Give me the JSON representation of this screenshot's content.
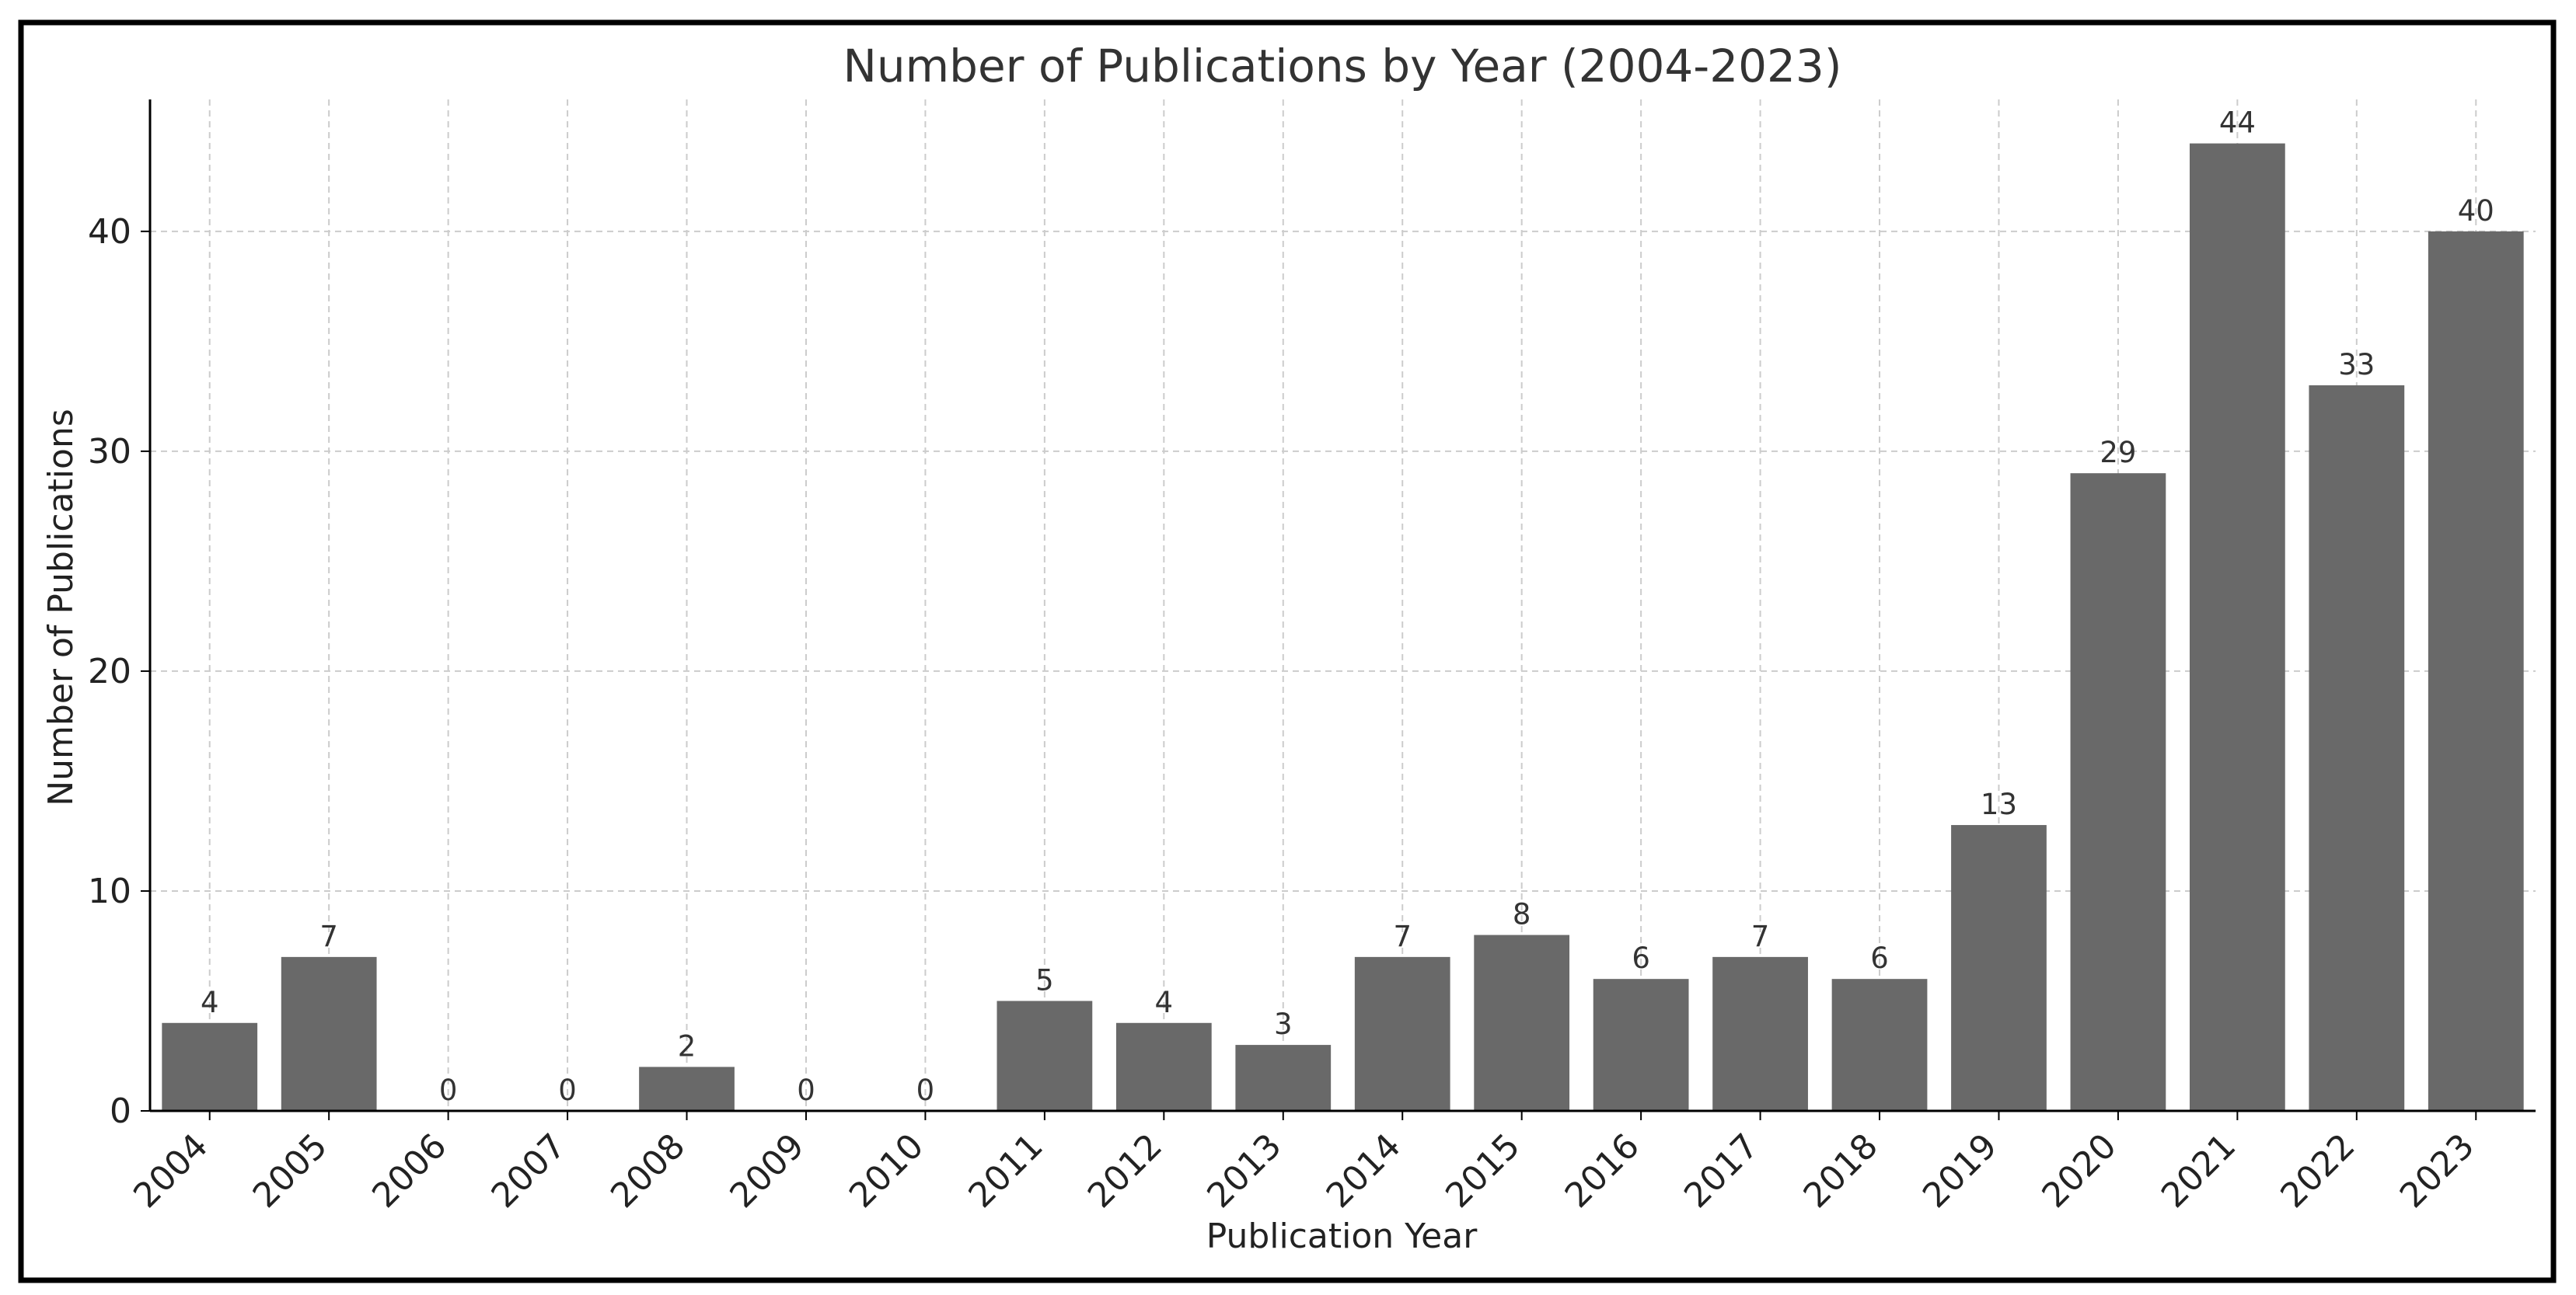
{
  "chart_data": {
    "type": "bar",
    "title": "Number of Publications by Year (2004-2023)",
    "xlabel": "Publication Year",
    "ylabel": "Number of Publications",
    "categories": [
      "2004",
      "2005",
      "2006",
      "2007",
      "2008",
      "2009",
      "2010",
      "2011",
      "2012",
      "2013",
      "2014",
      "2015",
      "2016",
      "2017",
      "2018",
      "2019",
      "2020",
      "2021",
      "2022",
      "2023"
    ],
    "values": [
      4,
      7,
      0,
      0,
      2,
      0,
      0,
      5,
      4,
      3,
      7,
      8,
      6,
      7,
      6,
      13,
      29,
      44,
      33,
      40
    ],
    "ylim": [
      0,
      46
    ],
    "yticks": [
      0,
      10,
      20,
      30,
      40
    ],
    "grid": true,
    "bar_color": "#696969",
    "data_labels": true
  }
}
